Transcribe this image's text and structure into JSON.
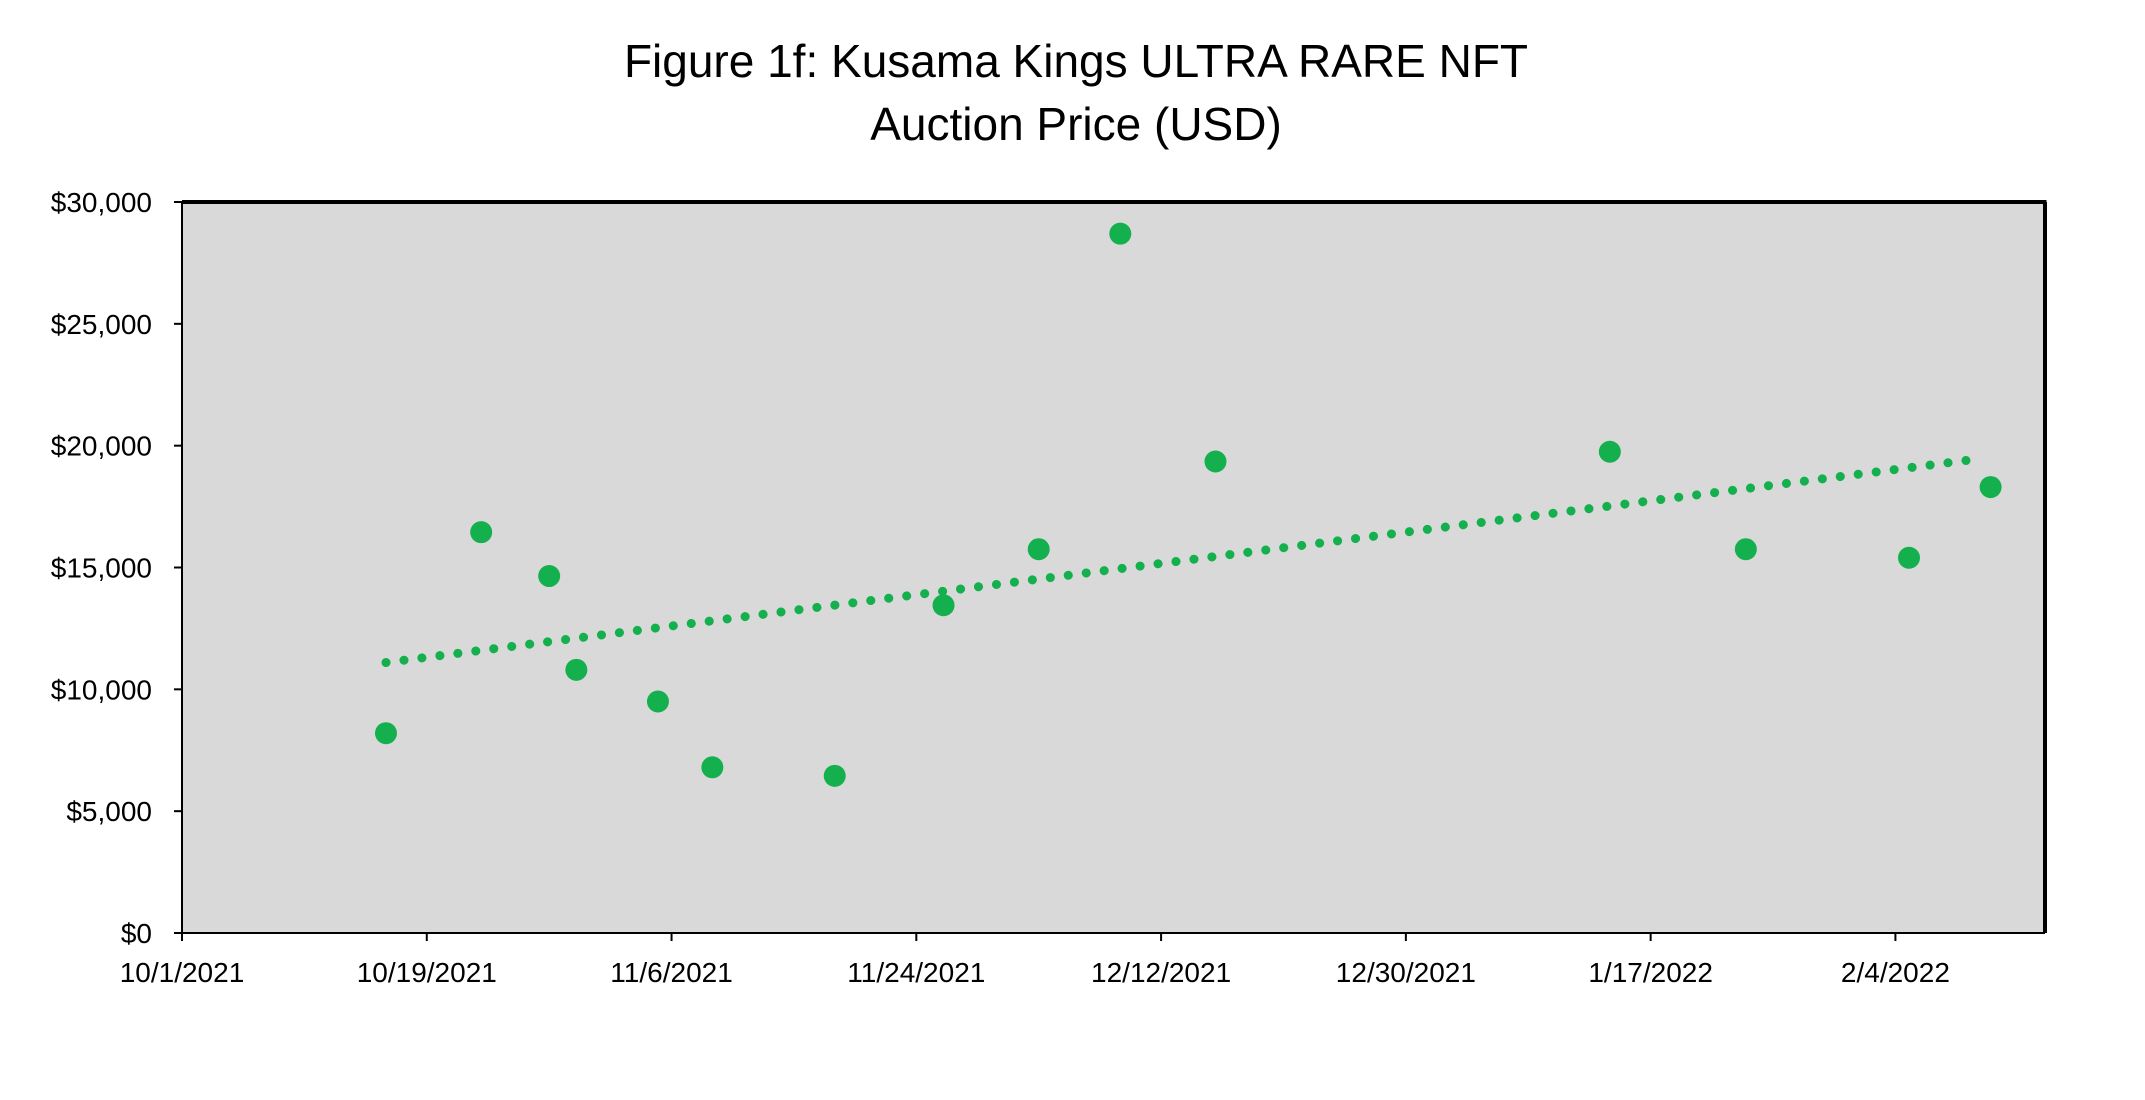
{
  "chart_data": {
    "type": "scatter",
    "title_line1": "Figure 1f: Kusama Kings ULTRA RARE NFT",
    "title_line2": "Auction Price (USD)",
    "xlabel": "",
    "ylabel": "",
    "ylim": [
      0,
      30000
    ],
    "xlim_days": [
      0,
      137
    ],
    "y_ticks": [
      {
        "value": 0,
        "label": "$0"
      },
      {
        "value": 5000,
        "label": "$5,000"
      },
      {
        "value": 10000,
        "label": "$10,000"
      },
      {
        "value": 15000,
        "label": "$15,000"
      },
      {
        "value": 20000,
        "label": "$20,000"
      },
      {
        "value": 25000,
        "label": "$25,000"
      },
      {
        "value": 30000,
        "label": "$30,000"
      }
    ],
    "x_ticks": [
      {
        "day": 0,
        "label": "10/1/2021"
      },
      {
        "day": 18,
        "label": "10/19/2021"
      },
      {
        "day": 36,
        "label": "11/6/2021"
      },
      {
        "day": 54,
        "label": "11/24/2021"
      },
      {
        "day": 72,
        "label": "12/12/2021"
      },
      {
        "day": 90,
        "label": "12/30/2021"
      },
      {
        "day": 108,
        "label": "1/17/2022"
      },
      {
        "day": 126,
        "label": "2/4/2022"
      }
    ],
    "points": [
      {
        "date": "10/16/2021",
        "day": 15,
        "value": 8200
      },
      {
        "date": "10/23/2021",
        "day": 22,
        "value": 16450
      },
      {
        "date": "10/28/2021",
        "day": 27,
        "value": 14650
      },
      {
        "date": "10/30/2021",
        "day": 29,
        "value": 10800
      },
      {
        "date": "11/5/2021",
        "day": 35,
        "value": 9500
      },
      {
        "date": "11/9/2021",
        "day": 39,
        "value": 6800
      },
      {
        "date": "11/18/2021",
        "day": 48,
        "value": 6450
      },
      {
        "date": "11/26/2021",
        "day": 56,
        "value": 13450
      },
      {
        "date": "12/3/2021",
        "day": 63,
        "value": 15750
      },
      {
        "date": "12/9/2021",
        "day": 69,
        "value": 28700
      },
      {
        "date": "12/16/2021",
        "day": 76,
        "value": 19350
      },
      {
        "date": "1/14/2022",
        "day": 105,
        "value": 19750
      },
      {
        "date": "1/24/2022",
        "day": 115,
        "value": 15750
      },
      {
        "date": "2/5/2022",
        "day": 127,
        "value": 15400
      },
      {
        "date": "2/11/2022",
        "day": 133,
        "value": 18300
      }
    ],
    "trendline": {
      "style": "dotted",
      "type": "linear",
      "start": {
        "day": 15,
        "value": 11100
      },
      "end": {
        "day": 132,
        "value": 19450
      }
    },
    "colors": {
      "marker": "#14b04e",
      "plot_background": "#d9d9d9",
      "axis": "#000000"
    }
  }
}
